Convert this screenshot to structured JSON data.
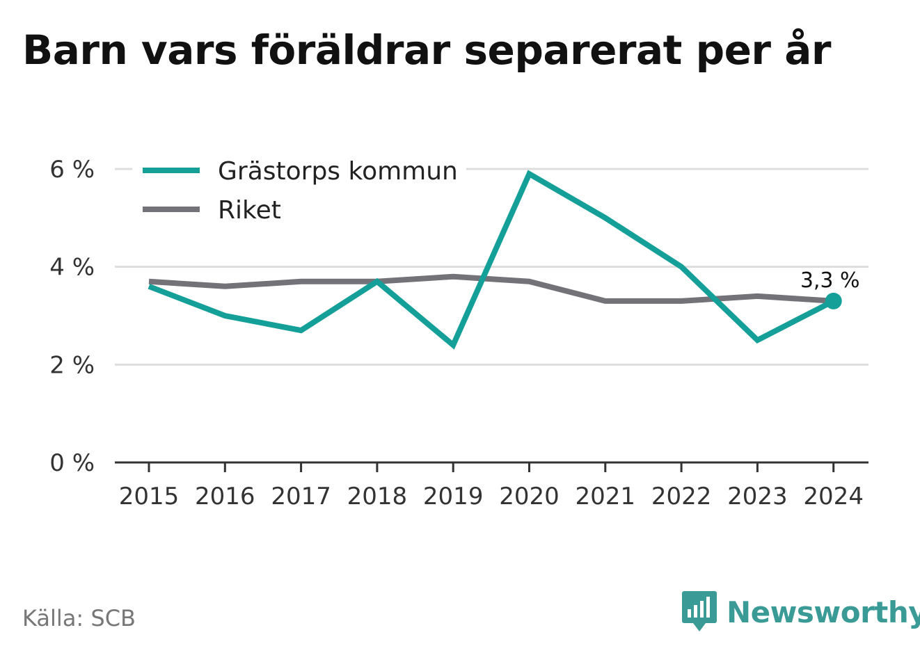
{
  "title": "Barn vars föräldrar separerat per år",
  "source": "Källa: SCB",
  "brand": "Newsworthy",
  "colors": {
    "series1": "#14a098",
    "series2": "#737278",
    "grid": "#dddddd",
    "axis": "#333333",
    "text": "#333333"
  },
  "chart_data": {
    "type": "line",
    "categories": [
      "2015",
      "2016",
      "2017",
      "2018",
      "2019",
      "2020",
      "2021",
      "2022",
      "2023",
      "2024"
    ],
    "series": [
      {
        "name": "Grästorps kommun",
        "values": [
          3.6,
          3.0,
          2.7,
          3.7,
          2.4,
          5.9,
          5.0,
          4.0,
          2.5,
          3.3
        ]
      },
      {
        "name": "Riket",
        "values": [
          3.7,
          3.6,
          3.7,
          3.7,
          3.8,
          3.7,
          3.3,
          3.3,
          3.4,
          3.3
        ]
      }
    ],
    "ylim": [
      0,
      6
    ],
    "yticks": [
      0,
      2,
      4,
      6
    ],
    "ytick_labels": [
      "0 %",
      "2 %",
      "4 %",
      "6 %"
    ],
    "grid": true,
    "legend_position": "top-left",
    "annotation": {
      "series": 0,
      "index": 9,
      "label": "3,3 %"
    }
  }
}
